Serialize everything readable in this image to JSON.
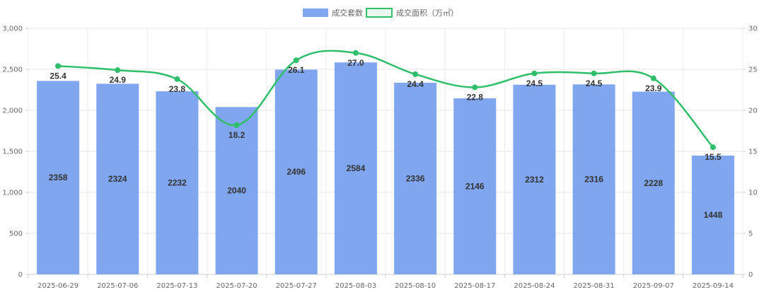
{
  "chart_data": {
    "type": "bar",
    "categories": [
      "2025-06-29",
      "2025-07-06",
      "2025-07-13",
      "2025-07-20",
      "2025-07-27",
      "2025-08-03",
      "2025-08-10",
      "2025-08-17",
      "2025-08-24",
      "2025-08-31",
      "2025-09-07",
      "2025-09-14"
    ],
    "series": [
      {
        "name": "成交套数",
        "type": "bar",
        "axis": "left",
        "values": [
          2358,
          2324,
          2232,
          2040,
          2496,
          2584,
          2336,
          2146,
          2312,
          2316,
          2228,
          1448
        ],
        "color": "#7fa6ee"
      },
      {
        "name": "成交面积（万㎡）",
        "type": "line",
        "axis": "right",
        "values": [
          25.4,
          24.9,
          23.8,
          18.2,
          26.1,
          27.0,
          24.4,
          22.8,
          24.5,
          24.5,
          23.9,
          15.5
        ],
        "color": "#2fbf6a"
      }
    ],
    "y_left": {
      "min": 0,
      "max": 3000,
      "ticks": [
        0,
        500,
        1000,
        1500,
        2000,
        2500,
        3000
      ],
      "tick_labels": [
        "0",
        "500",
        "1,000",
        "1,500",
        "2,000",
        "2,500",
        "3,000"
      ]
    },
    "y_right": {
      "min": 0,
      "max": 30,
      "ticks": [
        0,
        5,
        10,
        15,
        20,
        25,
        30
      ],
      "tick_labels": [
        "0",
        "5",
        "10",
        "15",
        "20",
        "25",
        "30"
      ]
    },
    "grid": true,
    "legend_position": "top-center",
    "title": "",
    "xlabel": "",
    "ylabel": ""
  }
}
